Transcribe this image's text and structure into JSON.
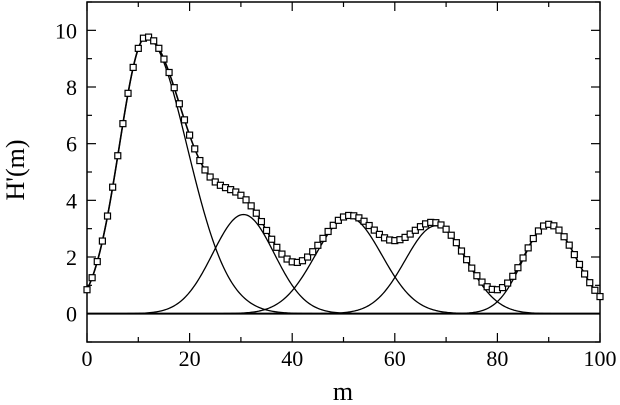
{
  "chart_data": {
    "type": "line",
    "xlabel": "m",
    "ylabel": "H'(m)",
    "xlim": [
      0,
      100
    ],
    "ylim": [
      -1,
      11
    ],
    "x_ticks": [
      0,
      20,
      40,
      60,
      80,
      100
    ],
    "y_ticks": [
      0,
      2,
      4,
      6,
      8,
      10
    ],
    "grid": false,
    "legend": "none",
    "line_color": "#000000",
    "components": [
      {
        "center": 11.5,
        "height": 9.75,
        "width_left": 5.2,
        "width_right": 8.0
      },
      {
        "center": 30.5,
        "height": 3.5,
        "width_left": 6.0,
        "width_right": 6.0
      },
      {
        "center": 51.0,
        "height": 3.4,
        "width_left": 6.5,
        "width_right": 6.5
      },
      {
        "center": 68.0,
        "height": 3.1,
        "width_left": 6.0,
        "width_right": 6.0
      },
      {
        "center": 90.0,
        "height": 3.15,
        "width_left": 5.0,
        "width_right": 5.5
      }
    ],
    "total_curve": "sum of components",
    "marker_series": {
      "marker": "open-square",
      "x_start": 0,
      "x_end": 100,
      "x_step": 1,
      "values": "sum of components evaluated at each x"
    }
  }
}
